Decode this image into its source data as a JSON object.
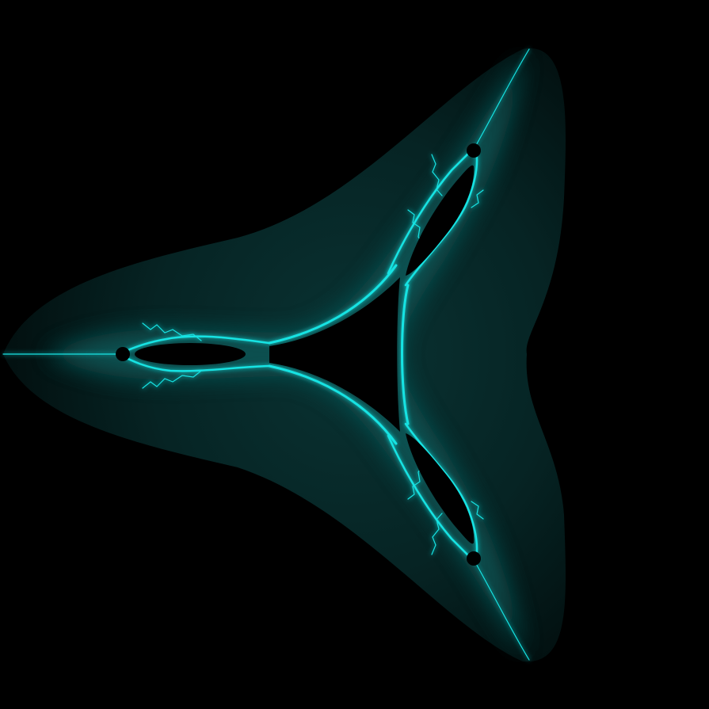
{
  "image": {
    "subject": "tricorn-mandelbar-fractal",
    "colors": {
      "background": "#000000",
      "glow": "#19e3e3",
      "halo": "#062a2a",
      "interior": "#000000"
    }
  }
}
